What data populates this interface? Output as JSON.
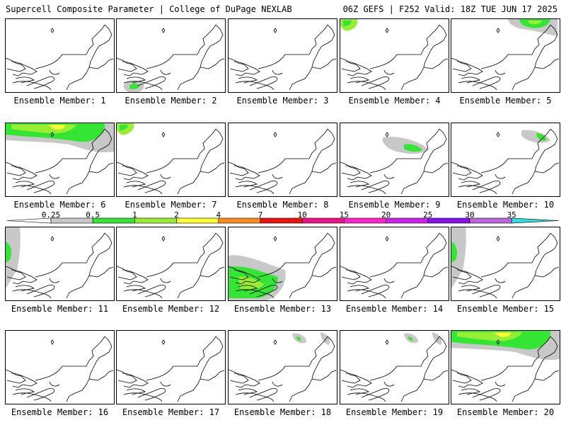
{
  "header": {
    "left": "Supercell Composite Parameter | College of DuPage NEXLAB",
    "right": "06Z GEFS | F252 Valid: 18Z TUE JUN 17 2025"
  },
  "legend": {
    "labels": [
      "0.25",
      "0.5",
      "1",
      "2",
      "4",
      "7",
      "10",
      "15",
      "20",
      "25",
      "30",
      "35"
    ],
    "colors": [
      "#ffffff",
      "#c8c8c8",
      "#33e633",
      "#99ee33",
      "#ffff33",
      "#ff8c1a",
      "#ee1111",
      "#ee1188",
      "#ff22cc",
      "#cc22ee",
      "#8811ee",
      "#bb66dd",
      "#33dddd"
    ]
  },
  "panels": [
    {
      "caption": "Ensemble Member: 1",
      "blobs": []
    },
    {
      "caption": "Ensemble Member: 2",
      "blobs": [
        {
          "shape": "gray-south",
          "level": "low"
        }
      ]
    },
    {
      "caption": "Ensemble Member: 3",
      "blobs": []
    },
    {
      "caption": "Ensemble Member: 4",
      "blobs": [
        {
          "shape": "nw-corner",
          "level": "low"
        }
      ]
    },
    {
      "caption": "Ensemble Member: 5",
      "blobs": [
        {
          "shape": "ne-top",
          "level": "mid"
        }
      ]
    },
    {
      "caption": "Ensemble Member: 6",
      "blobs": [
        {
          "shape": "top-band",
          "level": "high"
        }
      ]
    },
    {
      "caption": "Ensemble Member: 7",
      "blobs": [
        {
          "shape": "nw-corner",
          "level": "mid"
        }
      ]
    },
    {
      "caption": "Ensemble Member: 8",
      "blobs": []
    },
    {
      "caption": "Ensemble Member: 9",
      "blobs": [
        {
          "shape": "center",
          "level": "low"
        }
      ]
    },
    {
      "caption": "Ensemble Member: 10",
      "blobs": [
        {
          "shape": "ne-small",
          "level": "low"
        }
      ]
    },
    {
      "caption": "Ensemble Member: 11",
      "blobs": [
        {
          "shape": "west-edge",
          "level": "mid"
        }
      ]
    },
    {
      "caption": "Ensemble Member: 12",
      "blobs": []
    },
    {
      "caption": "Ensemble Member: 13",
      "blobs": [
        {
          "shape": "southwest",
          "level": "mid"
        }
      ]
    },
    {
      "caption": "Ensemble Member: 14",
      "blobs": []
    },
    {
      "caption": "Ensemble Member: 15",
      "blobs": [
        {
          "shape": "west-edge",
          "level": "low"
        }
      ]
    },
    {
      "caption": "Ensemble Member: 16",
      "blobs": []
    },
    {
      "caption": "Ensemble Member: 17",
      "blobs": []
    },
    {
      "caption": "Ensemble Member: 18",
      "blobs": [
        {
          "shape": "scatter-top",
          "level": "low"
        }
      ]
    },
    {
      "caption": "Ensemble Member: 19",
      "blobs": [
        {
          "shape": "scatter-top",
          "level": "low"
        }
      ]
    },
    {
      "caption": "Ensemble Member: 20",
      "blobs": [
        {
          "shape": "top-band",
          "level": "high"
        }
      ]
    }
  ]
}
